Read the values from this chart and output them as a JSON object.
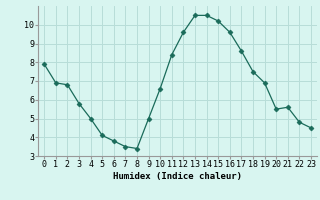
{
  "x": [
    0,
    1,
    2,
    3,
    4,
    5,
    6,
    7,
    8,
    9,
    10,
    11,
    12,
    13,
    14,
    15,
    16,
    17,
    18,
    19,
    20,
    21,
    22,
    23
  ],
  "y": [
    7.9,
    6.9,
    6.8,
    5.8,
    5.0,
    4.1,
    3.8,
    3.5,
    3.4,
    5.0,
    6.6,
    8.4,
    9.6,
    10.5,
    10.5,
    10.2,
    9.6,
    8.6,
    7.5,
    6.9,
    5.5,
    5.6,
    4.8,
    4.5
  ],
  "line_color": "#1a6b5a",
  "marker": "D",
  "marker_size": 2.5,
  "bg_color": "#d8f5f0",
  "grid_color": "#b8ddd8",
  "xlabel": "Humidex (Indice chaleur)",
  "ylim": [
    3,
    11
  ],
  "xlim": [
    -0.5,
    23.5
  ],
  "yticks": [
    3,
    4,
    5,
    6,
    7,
    8,
    9,
    10
  ],
  "xticks": [
    0,
    1,
    2,
    3,
    4,
    5,
    6,
    7,
    8,
    9,
    10,
    11,
    12,
    13,
    14,
    15,
    16,
    17,
    18,
    19,
    20,
    21,
    22,
    23
  ],
  "xtick_labels": [
    "0",
    "1",
    "2",
    "3",
    "4",
    "5",
    "6",
    "7",
    "8",
    "9",
    "10",
    "11",
    "12",
    "13",
    "14",
    "15",
    "16",
    "17",
    "18",
    "19",
    "20",
    "21",
    "22",
    "23"
  ],
  "label_fontsize": 6.5,
  "tick_fontsize": 6
}
